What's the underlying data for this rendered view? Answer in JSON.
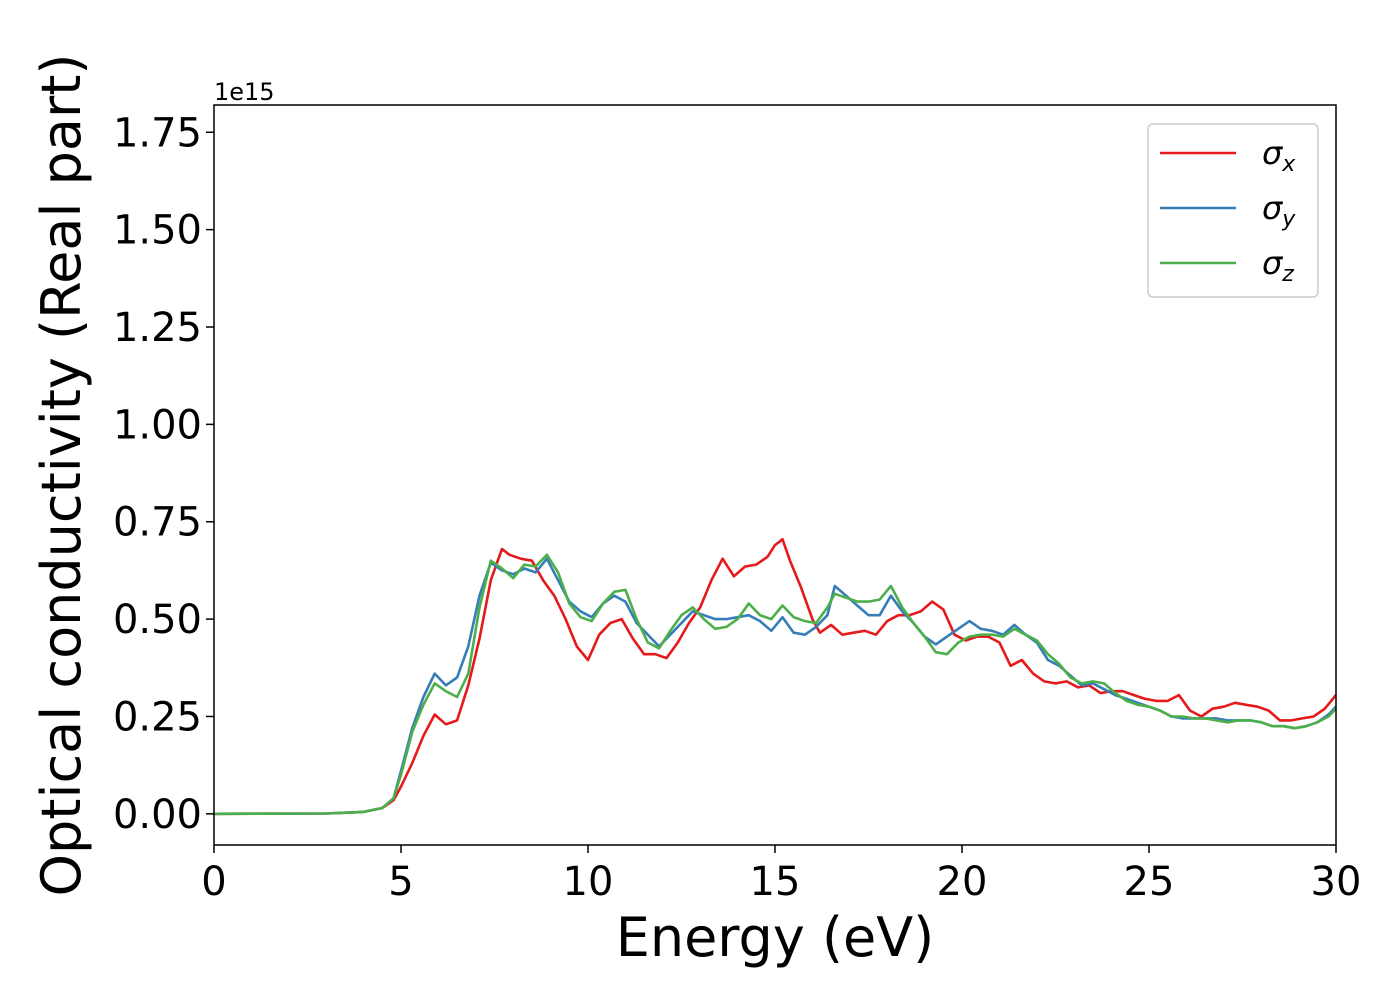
{
  "chart_data": {
    "type": "line",
    "xlabel": "Energy (eV)",
    "ylabel": "Optical conductivity (Real part)",
    "y_offset_label": "1e15",
    "y_multiplier": 1000000000000000.0,
    "xlim": [
      0,
      30
    ],
    "ylim": [
      -0.08,
      1.82
    ],
    "xticks": [
      0,
      5,
      10,
      15,
      20,
      25,
      30
    ],
    "xtick_labels": [
      "0",
      "5",
      "10",
      "15",
      "20",
      "25",
      "30"
    ],
    "yticks": [
      0,
      0.25,
      0.5,
      0.75,
      1.0,
      1.25,
      1.5,
      1.75
    ],
    "ytick_labels": [
      "0.00",
      "0.25",
      "0.50",
      "0.75",
      "1.00",
      "1.25",
      "1.50",
      "1.75"
    ],
    "grid": false,
    "legend_position": "top-right",
    "series": [
      {
        "name": "σx",
        "legend_main": "σ",
        "legend_sub": "x",
        "color": "#e41a1c",
        "x": [
          0,
          3,
          4,
          4.5,
          4.8,
          5.0,
          5.3,
          5.6,
          5.9,
          6.2,
          6.5,
          6.8,
          7.1,
          7.4,
          7.7,
          7.9,
          8.2,
          8.5,
          8.8,
          9.1,
          9.4,
          9.7,
          10.0,
          10.3,
          10.6,
          10.9,
          11.2,
          11.5,
          11.8,
          12.1,
          12.4,
          12.7,
          13.0,
          13.3,
          13.6,
          13.9,
          14.2,
          14.5,
          14.8,
          15.0,
          15.2,
          15.4,
          15.7,
          16.0,
          16.2,
          16.5,
          16.8,
          17.1,
          17.4,
          17.7,
          18.0,
          18.3,
          18.6,
          18.9,
          19.2,
          19.5,
          19.8,
          20.1,
          20.4,
          20.7,
          21.0,
          21.3,
          21.6,
          21.9,
          22.2,
          22.5,
          22.8,
          23.1,
          23.4,
          23.7,
          24.0,
          24.3,
          24.6,
          24.9,
          25.2,
          25.5,
          25.8,
          26.1,
          26.4,
          26.7,
          27.0,
          27.3,
          27.6,
          27.9,
          28.2,
          28.5,
          28.8,
          29.1,
          29.4,
          29.7,
          30.0
        ],
        "y": [
          0,
          0.001,
          0.005,
          0.015,
          0.035,
          0.07,
          0.13,
          0.2,
          0.255,
          0.23,
          0.24,
          0.33,
          0.45,
          0.6,
          0.68,
          0.665,
          0.655,
          0.65,
          0.6,
          0.56,
          0.5,
          0.43,
          0.395,
          0.46,
          0.49,
          0.5,
          0.45,
          0.41,
          0.41,
          0.4,
          0.44,
          0.49,
          0.53,
          0.6,
          0.655,
          0.61,
          0.635,
          0.64,
          0.66,
          0.69,
          0.705,
          0.65,
          0.58,
          0.5,
          0.465,
          0.485,
          0.46,
          0.465,
          0.47,
          0.46,
          0.495,
          0.51,
          0.51,
          0.52,
          0.545,
          0.525,
          0.46,
          0.445,
          0.455,
          0.455,
          0.44,
          0.38,
          0.395,
          0.36,
          0.34,
          0.335,
          0.34,
          0.325,
          0.33,
          0.31,
          0.315,
          0.315,
          0.305,
          0.295,
          0.29,
          0.29,
          0.305,
          0.265,
          0.25,
          0.27,
          0.275,
          0.285,
          0.28,
          0.275,
          0.265,
          0.24,
          0.24,
          0.245,
          0.25,
          0.27,
          0.305
        ]
      },
      {
        "name": "σy",
        "legend_main": "σ",
        "legend_sub": "y",
        "color": "#377eb8",
        "x": [
          0,
          3,
          4,
          4.5,
          4.8,
          5.0,
          5.3,
          5.6,
          5.9,
          6.2,
          6.5,
          6.8,
          7.1,
          7.4,
          7.7,
          8.0,
          8.3,
          8.6,
          8.9,
          9.2,
          9.5,
          9.8,
          10.1,
          10.4,
          10.7,
          11.0,
          11.3,
          11.6,
          11.9,
          12.2,
          12.5,
          12.8,
          13.1,
          13.4,
          13.7,
          14.0,
          14.3,
          14.6,
          14.9,
          15.2,
          15.5,
          15.8,
          16.1,
          16.4,
          16.6,
          16.9,
          17.2,
          17.5,
          17.8,
          18.1,
          18.4,
          18.7,
          19.0,
          19.3,
          19.6,
          19.9,
          20.2,
          20.5,
          20.8,
          21.1,
          21.4,
          21.7,
          22.0,
          22.3,
          22.6,
          22.9,
          23.2,
          23.5,
          23.8,
          24.1,
          24.4,
          24.7,
          25.0,
          25.3,
          25.6,
          25.9,
          26.2,
          26.5,
          26.8,
          27.1,
          27.4,
          27.7,
          28.0,
          28.3,
          28.6,
          28.9,
          29.2,
          29.5,
          29.8,
          30.0
        ],
        "y": [
          0,
          0.001,
          0.005,
          0.015,
          0.04,
          0.11,
          0.22,
          0.3,
          0.36,
          0.33,
          0.35,
          0.43,
          0.56,
          0.645,
          0.625,
          0.615,
          0.63,
          0.62,
          0.655,
          0.6,
          0.545,
          0.52,
          0.505,
          0.54,
          0.56,
          0.545,
          0.49,
          0.46,
          0.43,
          0.46,
          0.49,
          0.52,
          0.51,
          0.5,
          0.5,
          0.505,
          0.51,
          0.495,
          0.47,
          0.505,
          0.465,
          0.46,
          0.48,
          0.51,
          0.585,
          0.56,
          0.535,
          0.51,
          0.51,
          0.56,
          0.52,
          0.49,
          0.455,
          0.435,
          0.455,
          0.475,
          0.495,
          0.475,
          0.47,
          0.46,
          0.485,
          0.46,
          0.44,
          0.395,
          0.38,
          0.355,
          0.33,
          0.335,
          0.32,
          0.305,
          0.295,
          0.285,
          0.275,
          0.265,
          0.25,
          0.245,
          0.245,
          0.245,
          0.245,
          0.24,
          0.24,
          0.24,
          0.235,
          0.225,
          0.225,
          0.22,
          0.225,
          0.235,
          0.255,
          0.275
        ]
      },
      {
        "name": "σz",
        "legend_main": "σ",
        "legend_sub": "z",
        "color": "#4daf4a",
        "x": [
          0,
          3,
          4,
          4.5,
          4.8,
          5.0,
          5.3,
          5.6,
          5.9,
          6.2,
          6.5,
          6.8,
          7.1,
          7.4,
          7.7,
          8.0,
          8.3,
          8.6,
          8.9,
          9.2,
          9.5,
          9.8,
          10.1,
          10.4,
          10.7,
          11.0,
          11.3,
          11.6,
          11.9,
          12.2,
          12.5,
          12.8,
          13.1,
          13.4,
          13.7,
          14.0,
          14.3,
          14.6,
          14.9,
          15.2,
          15.5,
          15.8,
          16.1,
          16.4,
          16.6,
          16.9,
          17.2,
          17.5,
          17.8,
          18.1,
          18.4,
          18.7,
          19.0,
          19.3,
          19.6,
          19.9,
          20.2,
          20.5,
          20.8,
          21.1,
          21.4,
          21.7,
          22.0,
          22.3,
          22.6,
          22.9,
          23.2,
          23.5,
          23.8,
          24.1,
          24.4,
          24.7,
          25.0,
          25.3,
          25.6,
          25.9,
          26.2,
          26.5,
          26.8,
          27.1,
          27.4,
          27.7,
          28.0,
          28.3,
          28.6,
          28.9,
          29.2,
          29.5,
          29.8,
          30.0
        ],
        "y": [
          0,
          0.001,
          0.005,
          0.015,
          0.04,
          0.1,
          0.21,
          0.28,
          0.335,
          0.315,
          0.3,
          0.36,
          0.53,
          0.65,
          0.63,
          0.605,
          0.64,
          0.635,
          0.665,
          0.62,
          0.54,
          0.505,
          0.495,
          0.54,
          0.57,
          0.575,
          0.5,
          0.44,
          0.425,
          0.47,
          0.51,
          0.53,
          0.5,
          0.475,
          0.48,
          0.5,
          0.54,
          0.51,
          0.5,
          0.535,
          0.505,
          0.495,
          0.49,
          0.53,
          0.565,
          0.555,
          0.545,
          0.545,
          0.55,
          0.585,
          0.53,
          0.49,
          0.455,
          0.415,
          0.41,
          0.44,
          0.455,
          0.46,
          0.46,
          0.455,
          0.475,
          0.46,
          0.445,
          0.41,
          0.385,
          0.35,
          0.335,
          0.34,
          0.335,
          0.31,
          0.29,
          0.28,
          0.275,
          0.265,
          0.25,
          0.25,
          0.245,
          0.245,
          0.24,
          0.235,
          0.24,
          0.24,
          0.235,
          0.225,
          0.225,
          0.22,
          0.225,
          0.235,
          0.25,
          0.27
        ]
      }
    ]
  }
}
